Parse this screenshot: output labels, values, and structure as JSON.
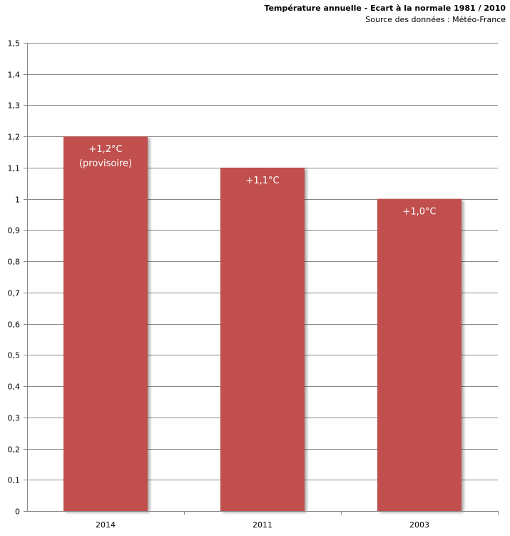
{
  "chart_data": {
    "type": "bar",
    "title": "Température annuelle - Ecart à la normale 1981 / 2010",
    "subtitle": "Source des données : Météo-France",
    "categories": [
      "2014",
      "2011",
      "2003"
    ],
    "values": [
      1.2,
      1.1,
      1.0
    ],
    "data_labels": [
      [
        "+1,2°C",
        "(provisoire)"
      ],
      [
        "+1,1°C"
      ],
      [
        "+1,0°C"
      ]
    ],
    "ylim": [
      0,
      1.5
    ],
    "yticks": [
      "0",
      "0,1",
      "0,2",
      "0,3",
      "0,4",
      "0,5",
      "0,6",
      "0,7",
      "0,8",
      "0,9",
      "1",
      "1,1",
      "1,2",
      "1,3",
      "1,4",
      "1,5"
    ],
    "grid": true,
    "bar_color": "#C0504D",
    "label_color": "#FFFFFF"
  }
}
